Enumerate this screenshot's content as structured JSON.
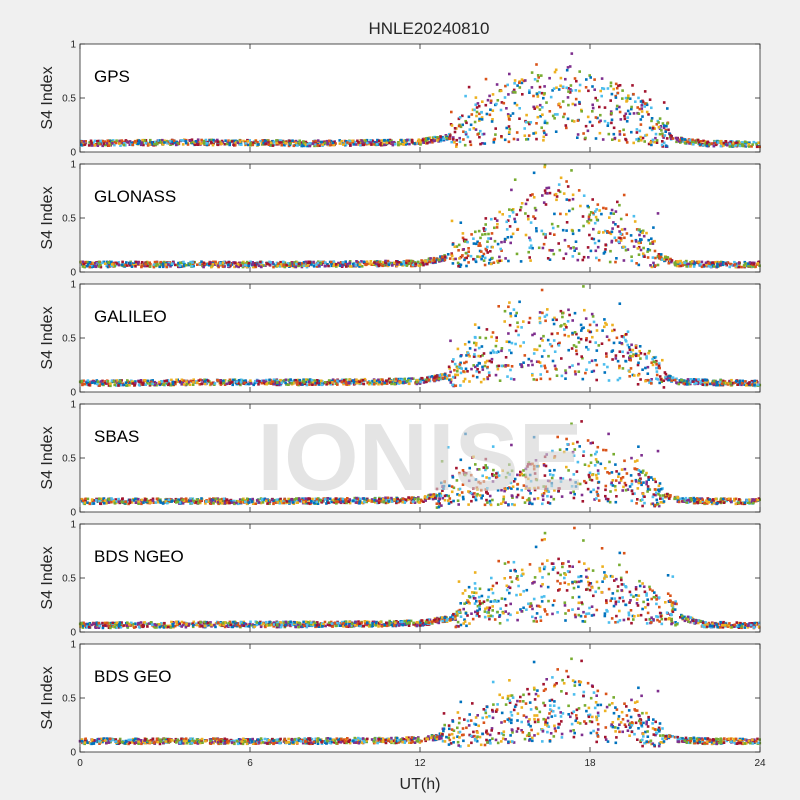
{
  "chart_data": {
    "type": "scatter",
    "title": "HNLE20240810",
    "xlabel": "UT(h)",
    "xlim": [
      0,
      24
    ],
    "xticks": [
      "0",
      "6",
      "12",
      "18",
      "24"
    ],
    "watermark": "IONISE",
    "colors": [
      "#0072BD",
      "#D95319",
      "#EDB120",
      "#7E2F8E",
      "#77AC30",
      "#4DBEEE",
      "#A2142F"
    ],
    "panels": [
      {
        "name": "GPS",
        "ylabel": "S4 Index",
        "ylim": [
          0,
          1
        ],
        "yticks": [
          "0",
          "0.5",
          "1"
        ],
        "profile": [
          [
            0,
            0.08
          ],
          [
            4,
            0.09
          ],
          [
            8,
            0.08
          ],
          [
            12,
            0.09
          ],
          [
            13,
            0.14
          ],
          [
            14,
            0.26
          ],
          [
            15,
            0.36
          ],
          [
            16,
            0.42
          ],
          [
            17,
            0.46
          ],
          [
            18,
            0.42
          ],
          [
            19,
            0.36
          ],
          [
            20,
            0.26
          ],
          [
            21,
            0.12
          ],
          [
            22,
            0.08
          ],
          [
            24,
            0.07
          ]
        ]
      },
      {
        "name": "GLONASS",
        "ylabel": "S4 Index",
        "ylim": [
          0,
          1
        ],
        "yticks": [
          "0",
          "0.5",
          "1"
        ],
        "profile": [
          [
            0,
            0.07
          ],
          [
            4,
            0.07
          ],
          [
            8,
            0.07
          ],
          [
            12,
            0.08
          ],
          [
            13,
            0.14
          ],
          [
            14,
            0.22
          ],
          [
            15,
            0.32
          ],
          [
            16,
            0.42
          ],
          [
            17,
            0.48
          ],
          [
            18,
            0.4
          ],
          [
            19,
            0.3
          ],
          [
            20,
            0.2
          ],
          [
            21,
            0.08
          ],
          [
            22,
            0.07
          ],
          [
            24,
            0.07
          ]
        ]
      },
      {
        "name": "GALILEO",
        "ylabel": "S4 Index",
        "ylim": [
          0,
          1
        ],
        "yticks": [
          "0",
          "0.5",
          "1"
        ],
        "profile": [
          [
            0,
            0.08
          ],
          [
            4,
            0.09
          ],
          [
            8,
            0.09
          ],
          [
            12,
            0.1
          ],
          [
            13,
            0.15
          ],
          [
            14,
            0.3
          ],
          [
            15,
            0.42
          ],
          [
            16,
            0.42
          ],
          [
            17,
            0.46
          ],
          [
            18,
            0.42
          ],
          [
            19,
            0.36
          ],
          [
            20,
            0.24
          ],
          [
            21,
            0.1
          ],
          [
            22,
            0.09
          ],
          [
            24,
            0.08
          ]
        ]
      },
      {
        "name": "SBAS",
        "ylabel": "S4 Index",
        "ylim": [
          0,
          1
        ],
        "yticks": [
          "0",
          "0.5",
          "1"
        ],
        "profile": [
          [
            0,
            0.1
          ],
          [
            4,
            0.1
          ],
          [
            8,
            0.1
          ],
          [
            12,
            0.11
          ],
          [
            13,
            0.18
          ],
          [
            14,
            0.26
          ],
          [
            15,
            0.22
          ],
          [
            16,
            0.26
          ],
          [
            17,
            0.36
          ],
          [
            18,
            0.38
          ],
          [
            19,
            0.3
          ],
          [
            20,
            0.2
          ],
          [
            21,
            0.12
          ],
          [
            22,
            0.1
          ],
          [
            24,
            0.1
          ]
        ]
      },
      {
        "name": "BDS NGEO",
        "ylabel": "S4 Index",
        "ylim": [
          0,
          1
        ],
        "yticks": [
          "0",
          "0.5",
          "1"
        ],
        "profile": [
          [
            0,
            0.06
          ],
          [
            4,
            0.07
          ],
          [
            8,
            0.07
          ],
          [
            12,
            0.08
          ],
          [
            13,
            0.12
          ],
          [
            14,
            0.24
          ],
          [
            15,
            0.32
          ],
          [
            16,
            0.36
          ],
          [
            17,
            0.4
          ],
          [
            18,
            0.34
          ],
          [
            19,
            0.3
          ],
          [
            20,
            0.26
          ],
          [
            21,
            0.16
          ],
          [
            22,
            0.07
          ],
          [
            24,
            0.06
          ]
        ]
      },
      {
        "name": "BDS GEO",
        "ylabel": "S4 Index",
        "ylim": [
          0,
          1
        ],
        "yticks": [
          "0",
          "0.5",
          "1"
        ],
        "profile": [
          [
            0,
            0.1
          ],
          [
            4,
            0.1
          ],
          [
            8,
            0.1
          ],
          [
            12,
            0.11
          ],
          [
            13,
            0.16
          ],
          [
            14,
            0.22
          ],
          [
            15,
            0.3
          ],
          [
            16,
            0.36
          ],
          [
            17,
            0.42
          ],
          [
            18,
            0.36
          ],
          [
            19,
            0.28
          ],
          [
            20,
            0.2
          ],
          [
            21,
            0.12
          ],
          [
            22,
            0.1
          ],
          [
            24,
            0.1
          ]
        ]
      }
    ]
  }
}
